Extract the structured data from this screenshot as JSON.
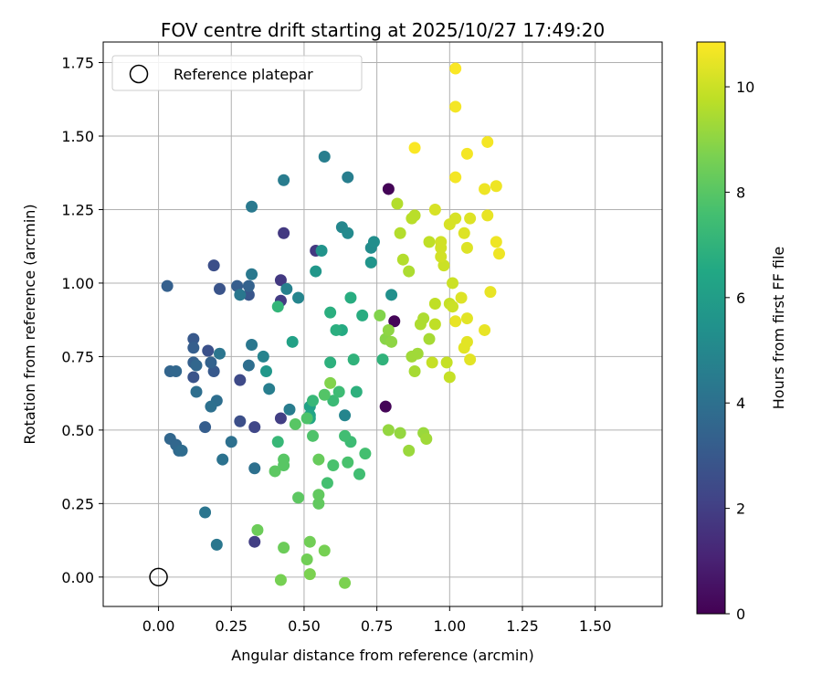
{
  "chart_data": {
    "type": "scatter",
    "title": "FOV centre drift starting at 2025/10/27 17:49:20",
    "xlabel": "Angular distance from reference (arcmin)",
    "ylabel": "Rotation from reference (arcmin)",
    "xlim": [
      -0.19,
      1.73
    ],
    "ylim": [
      -0.1,
      1.82
    ],
    "xticks": [
      "0.00",
      "0.25",
      "0.50",
      "0.75",
      "1.00",
      "1.25",
      "1.50"
    ],
    "yticks": [
      "0.00",
      "0.25",
      "0.50",
      "0.75",
      "1.00",
      "1.25",
      "1.50",
      "1.75"
    ],
    "grid": true,
    "legend": {
      "position": "top-left",
      "label": "Reference platepar"
    },
    "reference_point": {
      "x": 0.0,
      "y": 0.0
    },
    "colorbar": {
      "label": "Hours from first FF file",
      "colormap": "viridis",
      "range": [
        0,
        10.85
      ],
      "ticks": [
        "0",
        "2",
        "4",
        "6",
        "8",
        "10"
      ]
    },
    "points": [
      {
        "x": 0.79,
        "y": 1.32,
        "h": 0.1
      },
      {
        "x": 0.81,
        "y": 0.87,
        "h": 0.1
      },
      {
        "x": 0.78,
        "y": 0.58,
        "h": 0.1
      },
      {
        "x": 0.43,
        "y": 1.17,
        "h": 1.8
      },
      {
        "x": 0.54,
        "y": 1.11,
        "h": 1.8
      },
      {
        "x": 0.42,
        "y": 1.01,
        "h": 1.8
      },
      {
        "x": 0.42,
        "y": 0.94,
        "h": 1.9
      },
      {
        "x": 0.42,
        "y": 0.54,
        "h": 2.0
      },
      {
        "x": 0.33,
        "y": 0.12,
        "h": 2.0
      },
      {
        "x": 0.33,
        "y": 0.51,
        "h": 2.3
      },
      {
        "x": 0.28,
        "y": 0.53,
        "h": 2.6
      },
      {
        "x": 0.28,
        "y": 0.67,
        "h": 2.4
      },
      {
        "x": 0.19,
        "y": 1.06,
        "h": 2.6
      },
      {
        "x": 0.21,
        "y": 0.98,
        "h": 2.8
      },
      {
        "x": 0.31,
        "y": 0.96,
        "h": 2.9
      },
      {
        "x": 0.17,
        "y": 0.77,
        "h": 2.7
      },
      {
        "x": 0.12,
        "y": 0.68,
        "h": 2.8
      },
      {
        "x": 0.12,
        "y": 0.81,
        "h": 3.0
      },
      {
        "x": 0.19,
        "y": 0.7,
        "h": 3.0
      },
      {
        "x": 0.16,
        "y": 0.51,
        "h": 3.2
      },
      {
        "x": 0.12,
        "y": 0.78,
        "h": 3.2
      },
      {
        "x": 0.27,
        "y": 0.99,
        "h": 3.2
      },
      {
        "x": 0.31,
        "y": 0.99,
        "h": 3.4
      },
      {
        "x": 0.03,
        "y": 0.99,
        "h": 3.3
      },
      {
        "x": 0.12,
        "y": 0.73,
        "h": 3.3
      },
      {
        "x": 0.18,
        "y": 0.73,
        "h": 3.4
      },
      {
        "x": 0.13,
        "y": 0.72,
        "h": 3.6
      },
      {
        "x": 0.04,
        "y": 0.7,
        "h": 3.5
      },
      {
        "x": 0.06,
        "y": 0.7,
        "h": 3.6
      },
      {
        "x": 0.04,
        "y": 0.47,
        "h": 3.6
      },
      {
        "x": 0.06,
        "y": 0.45,
        "h": 3.6
      },
      {
        "x": 0.07,
        "y": 0.43,
        "h": 3.7
      },
      {
        "x": 0.08,
        "y": 0.43,
        "h": 3.8
      },
      {
        "x": 0.2,
        "y": 0.6,
        "h": 3.9
      },
      {
        "x": 0.18,
        "y": 0.58,
        "h": 4.0
      },
      {
        "x": 0.13,
        "y": 0.63,
        "h": 3.9
      },
      {
        "x": 0.31,
        "y": 0.72,
        "h": 3.9
      },
      {
        "x": 0.33,
        "y": 0.37,
        "h": 4.0
      },
      {
        "x": 0.25,
        "y": 0.46,
        "h": 4.0
      },
      {
        "x": 0.22,
        "y": 0.4,
        "h": 4.1
      },
      {
        "x": 0.16,
        "y": 0.22,
        "h": 4.2
      },
      {
        "x": 0.2,
        "y": 0.11,
        "h": 4.3
      },
      {
        "x": 0.21,
        "y": 0.76,
        "h": 4.2
      },
      {
        "x": 0.32,
        "y": 0.79,
        "h": 4.3
      },
      {
        "x": 0.28,
        "y": 0.96,
        "h": 4.3
      },
      {
        "x": 0.32,
        "y": 1.03,
        "h": 4.4
      },
      {
        "x": 0.32,
        "y": 1.26,
        "h": 4.4
      },
      {
        "x": 0.43,
        "y": 1.35,
        "h": 4.5
      },
      {
        "x": 0.57,
        "y": 1.43,
        "h": 4.6
      },
      {
        "x": 0.65,
        "y": 1.36,
        "h": 4.6
      },
      {
        "x": 0.38,
        "y": 0.64,
        "h": 4.6
      },
      {
        "x": 0.45,
        "y": 0.57,
        "h": 4.5
      },
      {
        "x": 0.36,
        "y": 0.75,
        "h": 4.8
      },
      {
        "x": 0.44,
        "y": 0.98,
        "h": 4.7
      },
      {
        "x": 0.48,
        "y": 0.95,
        "h": 4.9
      },
      {
        "x": 0.64,
        "y": 0.55,
        "h": 4.9
      },
      {
        "x": 0.63,
        "y": 1.19,
        "h": 5.0
      },
      {
        "x": 0.65,
        "y": 1.17,
        "h": 5.1
      },
      {
        "x": 0.73,
        "y": 1.12,
        "h": 5.2
      },
      {
        "x": 0.74,
        "y": 1.14,
        "h": 5.3
      },
      {
        "x": 0.8,
        "y": 0.96,
        "h": 5.4
      },
      {
        "x": 0.56,
        "y": 1.11,
        "h": 5.5
      },
      {
        "x": 0.73,
        "y": 1.07,
        "h": 5.6
      },
      {
        "x": 0.54,
        "y": 1.04,
        "h": 5.7
      },
      {
        "x": 0.37,
        "y": 0.7,
        "h": 5.7
      },
      {
        "x": 0.46,
        "y": 0.8,
        "h": 6.2
      },
      {
        "x": 0.52,
        "y": 0.58,
        "h": 6.2
      },
      {
        "x": 0.52,
        "y": 0.55,
        "h": 6.3
      },
      {
        "x": 0.52,
        "y": 0.54,
        "h": 6.4
      },
      {
        "x": 0.63,
        "y": 0.84,
        "h": 6.6
      },
      {
        "x": 0.66,
        "y": 0.95,
        "h": 6.7
      },
      {
        "x": 0.7,
        "y": 0.89,
        "h": 6.7
      },
      {
        "x": 0.59,
        "y": 0.9,
        "h": 6.8
      },
      {
        "x": 0.61,
        "y": 0.84,
        "h": 6.8
      },
      {
        "x": 0.59,
        "y": 0.73,
        "h": 6.9
      },
      {
        "x": 0.68,
        "y": 0.63,
        "h": 6.9
      },
      {
        "x": 0.67,
        "y": 0.74,
        "h": 7.0
      },
      {
        "x": 0.77,
        "y": 0.74,
        "h": 7.0
      },
      {
        "x": 0.41,
        "y": 0.92,
        "h": 7.1
      },
      {
        "x": 0.41,
        "y": 0.46,
        "h": 7.2
      },
      {
        "x": 0.53,
        "y": 0.6,
        "h": 7.2
      },
      {
        "x": 0.6,
        "y": 0.6,
        "h": 7.3
      },
      {
        "x": 0.62,
        "y": 0.63,
        "h": 7.4
      },
      {
        "x": 0.66,
        "y": 0.46,
        "h": 7.4
      },
      {
        "x": 0.64,
        "y": 0.48,
        "h": 7.5
      },
      {
        "x": 0.69,
        "y": 0.35,
        "h": 7.5
      },
      {
        "x": 0.71,
        "y": 0.42,
        "h": 7.6
      },
      {
        "x": 0.58,
        "y": 0.32,
        "h": 7.6
      },
      {
        "x": 0.6,
        "y": 0.38,
        "h": 7.7
      },
      {
        "x": 0.65,
        "y": 0.39,
        "h": 7.7
      },
      {
        "x": 0.53,
        "y": 0.48,
        "h": 7.8
      },
      {
        "x": 0.51,
        "y": 0.54,
        "h": 7.8
      },
      {
        "x": 0.57,
        "y": 0.62,
        "h": 7.9
      },
      {
        "x": 0.43,
        "y": 0.4,
        "h": 8.0
      },
      {
        "x": 0.43,
        "y": 0.38,
        "h": 8.0
      },
      {
        "x": 0.47,
        "y": 0.52,
        "h": 8.0
      },
      {
        "x": 0.4,
        "y": 0.36,
        "h": 8.1
      },
      {
        "x": 0.48,
        "y": 0.27,
        "h": 8.1
      },
      {
        "x": 0.55,
        "y": 0.25,
        "h": 8.2
      },
      {
        "x": 0.55,
        "y": 0.28,
        "h": 8.2
      },
      {
        "x": 0.55,
        "y": 0.4,
        "h": 8.3
      },
      {
        "x": 0.34,
        "y": 0.16,
        "h": 8.4
      },
      {
        "x": 0.43,
        "y": 0.1,
        "h": 8.4
      },
      {
        "x": 0.52,
        "y": 0.12,
        "h": 8.5
      },
      {
        "x": 0.51,
        "y": 0.06,
        "h": 8.5
      },
      {
        "x": 0.57,
        "y": 0.09,
        "h": 8.6
      },
      {
        "x": 0.42,
        "y": -0.01,
        "h": 8.6
      },
      {
        "x": 0.52,
        "y": 0.01,
        "h": 8.7
      },
      {
        "x": 0.64,
        "y": -0.02,
        "h": 8.7
      },
      {
        "x": 0.59,
        "y": 0.66,
        "h": 8.8
      },
      {
        "x": 0.76,
        "y": 0.89,
        "h": 8.8
      },
      {
        "x": 0.78,
        "y": 0.81,
        "h": 8.9
      },
      {
        "x": 0.8,
        "y": 0.8,
        "h": 9.0
      },
      {
        "x": 0.79,
        "y": 0.84,
        "h": 9.0
      },
      {
        "x": 0.79,
        "y": 0.5,
        "h": 9.1
      },
      {
        "x": 0.83,
        "y": 0.49,
        "h": 9.1
      },
      {
        "x": 0.86,
        "y": 0.43,
        "h": 9.2
      },
      {
        "x": 0.91,
        "y": 0.49,
        "h": 9.2
      },
      {
        "x": 0.92,
        "y": 0.47,
        "h": 9.3
      },
      {
        "x": 0.87,
        "y": 0.75,
        "h": 9.3
      },
      {
        "x": 0.89,
        "y": 0.76,
        "h": 9.3
      },
      {
        "x": 0.88,
        "y": 0.7,
        "h": 9.4
      },
      {
        "x": 0.93,
        "y": 0.81,
        "h": 9.4
      },
      {
        "x": 0.9,
        "y": 0.86,
        "h": 9.5
      },
      {
        "x": 0.91,
        "y": 0.88,
        "h": 9.5
      },
      {
        "x": 0.86,
        "y": 1.04,
        "h": 9.5
      },
      {
        "x": 0.84,
        "y": 1.08,
        "h": 9.6
      },
      {
        "x": 0.82,
        "y": 1.27,
        "h": 9.6
      },
      {
        "x": 0.83,
        "y": 1.17,
        "h": 9.6
      },
      {
        "x": 0.87,
        "y": 1.22,
        "h": 9.7
      },
      {
        "x": 0.88,
        "y": 1.23,
        "h": 9.7
      },
      {
        "x": 0.93,
        "y": 1.14,
        "h": 9.8
      },
      {
        "x": 0.95,
        "y": 0.93,
        "h": 9.8
      },
      {
        "x": 0.95,
        "y": 0.86,
        "h": 9.8
      },
      {
        "x": 0.94,
        "y": 0.73,
        "h": 9.9
      },
      {
        "x": 0.99,
        "y": 0.73,
        "h": 9.9
      },
      {
        "x": 1.0,
        "y": 0.68,
        "h": 9.9
      },
      {
        "x": 1.0,
        "y": 0.93,
        "h": 9.9
      },
      {
        "x": 1.01,
        "y": 0.92,
        "h": 10.0
      },
      {
        "x": 1.01,
        "y": 1.0,
        "h": 10.0
      },
      {
        "x": 0.98,
        "y": 1.06,
        "h": 10.0
      },
      {
        "x": 0.97,
        "y": 1.09,
        "h": 10.1
      },
      {
        "x": 0.97,
        "y": 1.12,
        "h": 10.1
      },
      {
        "x": 0.97,
        "y": 1.14,
        "h": 10.1
      },
      {
        "x": 0.95,
        "y": 1.25,
        "h": 10.2
      },
      {
        "x": 1.0,
        "y": 1.2,
        "h": 10.2
      },
      {
        "x": 1.02,
        "y": 1.22,
        "h": 10.2
      },
      {
        "x": 1.05,
        "y": 1.17,
        "h": 10.3
      },
      {
        "x": 1.06,
        "y": 1.12,
        "h": 10.3
      },
      {
        "x": 1.07,
        "y": 1.22,
        "h": 10.3
      },
      {
        "x": 1.04,
        "y": 0.95,
        "h": 10.3
      },
      {
        "x": 1.06,
        "y": 0.88,
        "h": 10.4
      },
      {
        "x": 1.06,
        "y": 0.8,
        "h": 10.4
      },
      {
        "x": 1.05,
        "y": 0.78,
        "h": 10.4
      },
      {
        "x": 1.07,
        "y": 0.74,
        "h": 10.4
      },
      {
        "x": 1.02,
        "y": 0.87,
        "h": 10.5
      },
      {
        "x": 1.12,
        "y": 0.84,
        "h": 10.5
      },
      {
        "x": 1.14,
        "y": 0.97,
        "h": 10.5
      },
      {
        "x": 1.13,
        "y": 1.23,
        "h": 10.5
      },
      {
        "x": 1.16,
        "y": 1.14,
        "h": 10.6
      },
      {
        "x": 1.17,
        "y": 1.1,
        "h": 10.6
      },
      {
        "x": 1.16,
        "y": 1.33,
        "h": 10.6
      },
      {
        "x": 1.12,
        "y": 1.32,
        "h": 10.6
      },
      {
        "x": 1.13,
        "y": 1.48,
        "h": 10.7
      },
      {
        "x": 1.06,
        "y": 1.44,
        "h": 10.7
      },
      {
        "x": 1.02,
        "y": 1.36,
        "h": 10.7
      },
      {
        "x": 1.02,
        "y": 1.6,
        "h": 10.7
      },
      {
        "x": 1.02,
        "y": 1.73,
        "h": 10.8
      },
      {
        "x": 0.88,
        "y": 1.46,
        "h": 10.8
      }
    ]
  }
}
